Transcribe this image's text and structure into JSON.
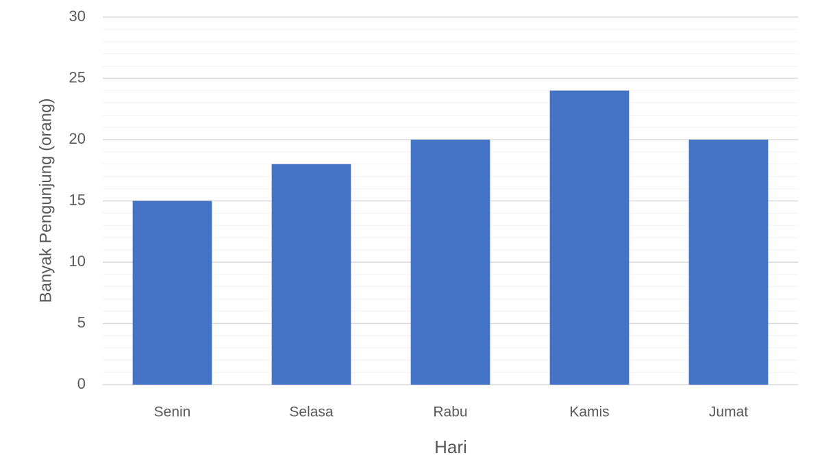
{
  "chart_data": {
    "type": "bar",
    "x_label": "Hari",
    "y_label": "Banyak Pengunjung (orang)",
    "categories": [
      "Senin",
      "Selasa",
      "Rabu",
      "Kamis",
      "Jumat"
    ],
    "values": [
      15,
      18,
      20,
      24,
      20
    ],
    "color": "#4472c4",
    "ylim": [
      0,
      30
    ],
    "yticks": [
      0,
      5,
      10,
      15,
      20,
      25,
      30
    ],
    "minor_yticks": [
      1,
      2,
      3,
      4,
      6,
      7,
      8,
      9,
      11,
      12,
      13,
      14,
      16,
      17,
      18,
      19,
      21,
      22,
      23,
      24,
      26,
      27,
      28,
      29
    ],
    "grid": true
  }
}
